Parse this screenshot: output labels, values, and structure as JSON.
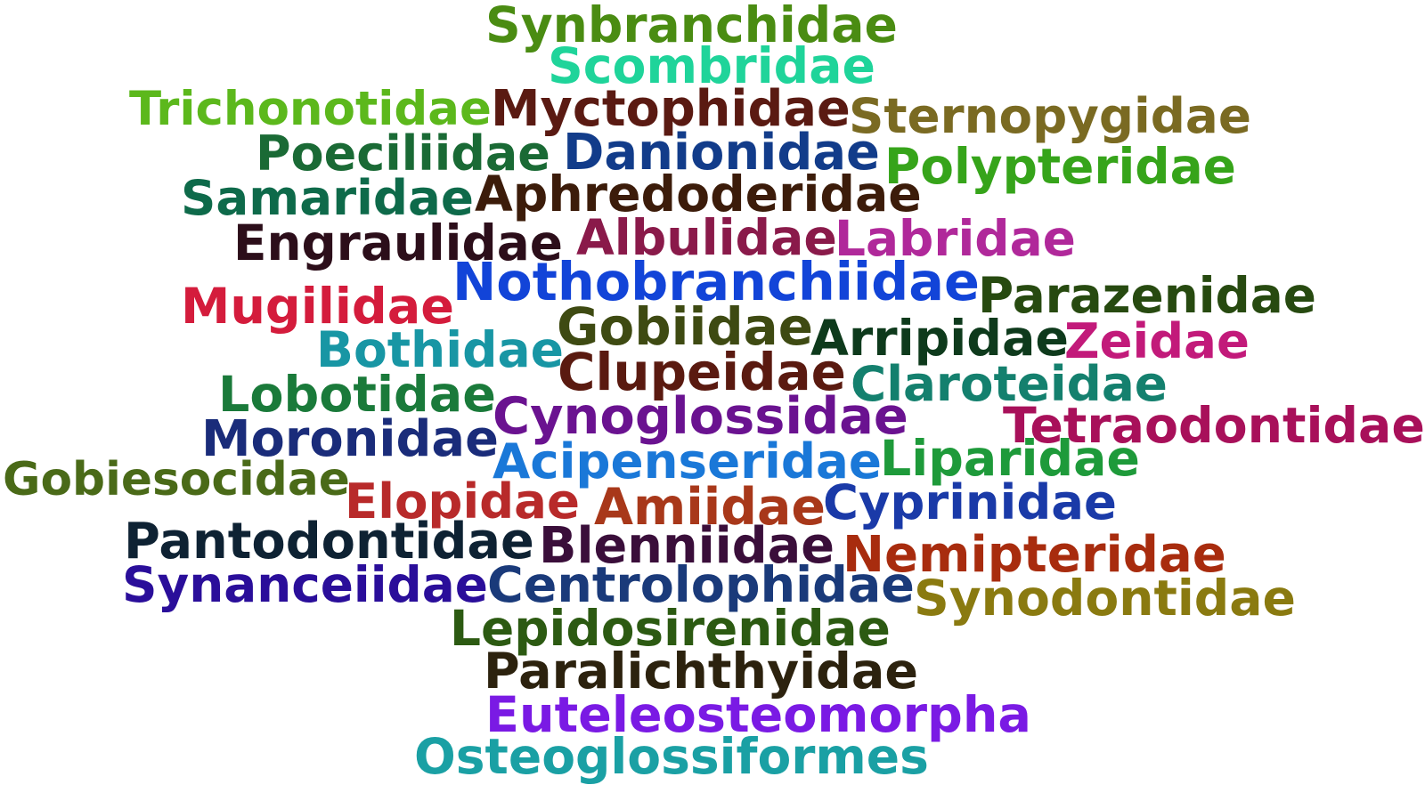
{
  "words": [
    {
      "text": "Synbranchidae",
      "color": "#4a8c12"
    },
    {
      "text": "Scombridae",
      "color": "#1fd49a"
    },
    {
      "text": "Trichonotidae",
      "color": "#5cb81c"
    },
    {
      "text": "Myctophidae",
      "color": "#5a1a12"
    },
    {
      "text": "Sternopygidae",
      "color": "#7a6a22"
    },
    {
      "text": "Poeciliidae",
      "color": "#1a6a35"
    },
    {
      "text": "Danionidae",
      "color": "#123c8a"
    },
    {
      "text": "Polypteridae",
      "color": "#36a41a"
    },
    {
      "text": "Samaridae",
      "color": "#0e6a4a"
    },
    {
      "text": "Aphredoderidae",
      "color": "#3c1c0a"
    },
    {
      "text": "Engraulidae",
      "color": "#2c0e1a"
    },
    {
      "text": "Albulidae",
      "color": "#8a1a4a"
    },
    {
      "text": "Labridae",
      "color": "#b0289a"
    },
    {
      "text": "Nothobranchiidae",
      "color": "#1244d8"
    },
    {
      "text": "Parazenidae",
      "color": "#274a10"
    },
    {
      "text": "Mugilidae",
      "color": "#d41c3c"
    },
    {
      "text": "Gobiidae",
      "color": "#3e4a12"
    },
    {
      "text": "Bothidae",
      "color": "#1896a4"
    },
    {
      "text": "Arripidae",
      "color": "#0e3a1c"
    },
    {
      "text": "Zeidae",
      "color": "#c21a7a"
    },
    {
      "text": "Clupeidae",
      "color": "#5a1a10"
    },
    {
      "text": "Claroteidae",
      "color": "#14806e"
    },
    {
      "text": "Lobotidae",
      "color": "#1a7a3a"
    },
    {
      "text": "Cynoglossidae",
      "color": "#6a1290"
    },
    {
      "text": "Tetraodontidae",
      "color": "#a8105a"
    },
    {
      "text": "Moronidae",
      "color": "#1a2c7a"
    },
    {
      "text": "Acipenseridae",
      "color": "#1a78d8"
    },
    {
      "text": "Liparidae",
      "color": "#1e9a3a"
    },
    {
      "text": "Gobiesocidae",
      "color": "#4a6a18"
    },
    {
      "text": "Elopidae",
      "color": "#b82a2a"
    },
    {
      "text": "Amiidae",
      "color": "#a8381a"
    },
    {
      "text": "Cyprinidae",
      "color": "#1a3aa8"
    },
    {
      "text": "Pantodontidae",
      "color": "#0e2233"
    },
    {
      "text": "Blenniidae",
      "color": "#3a0e3a"
    },
    {
      "text": "Nemipteridae",
      "color": "#a82c0e"
    },
    {
      "text": "Synanceiidae",
      "color": "#2a0e9a"
    },
    {
      "text": "Centrolophidae",
      "color": "#1a3a7a"
    },
    {
      "text": "Synodontidae",
      "color": "#8a7a10"
    },
    {
      "text": "Lepidosirenidae",
      "color": "#2c5a12"
    },
    {
      "text": "Paralichthyidae",
      "color": "#2c220e"
    },
    {
      "text": "Euteleosteomorpha",
      "color": "#7a1ae4"
    },
    {
      "text": "Osteoglossiformes",
      "color": "#1aa0a4"
    }
  ]
}
